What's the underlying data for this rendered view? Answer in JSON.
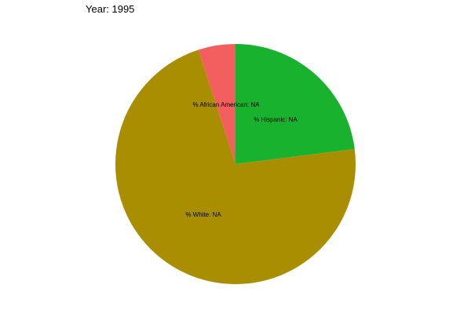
{
  "chart_data": {
    "type": "pie",
    "title": "Year: 1995",
    "slices": [
      {
        "label": "% Hispanic: NA",
        "value": 23.0,
        "color": "#18b22f"
      },
      {
        "label": "% White: NA",
        "value": 72.0,
        "color": "#a88e00"
      },
      {
        "label": "% African American: NA",
        "value": 5.0,
        "color": "#f35f5f"
      }
    ],
    "start_angle": "12 o'clock",
    "direction": "clockwise",
    "legend": "none"
  }
}
